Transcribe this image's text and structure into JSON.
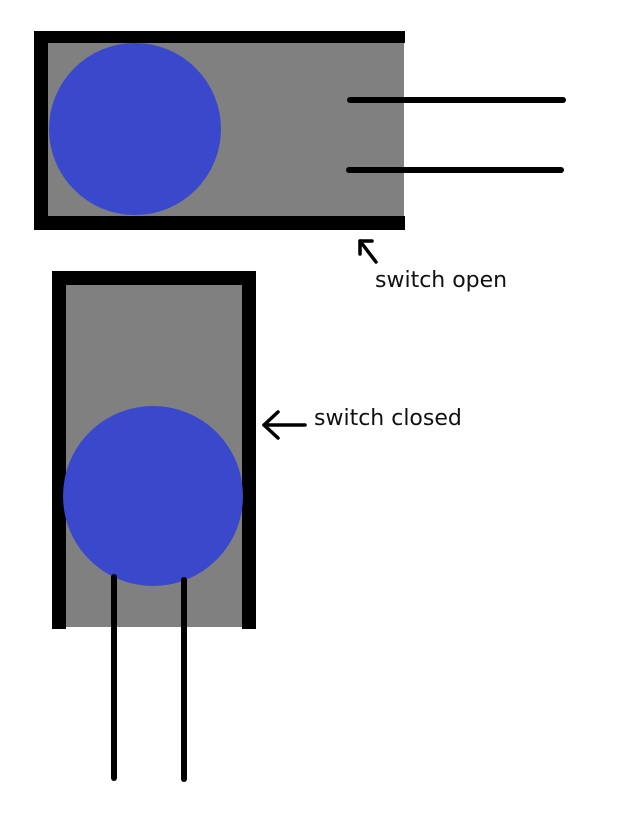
{
  "labels": {
    "switch_open": "switch open",
    "switch_closed": "switch closed"
  },
  "colors": {
    "background": "#ffffff",
    "housing_fill": "#808080",
    "outline": "#000000",
    "ball": "#3a48cc"
  }
}
